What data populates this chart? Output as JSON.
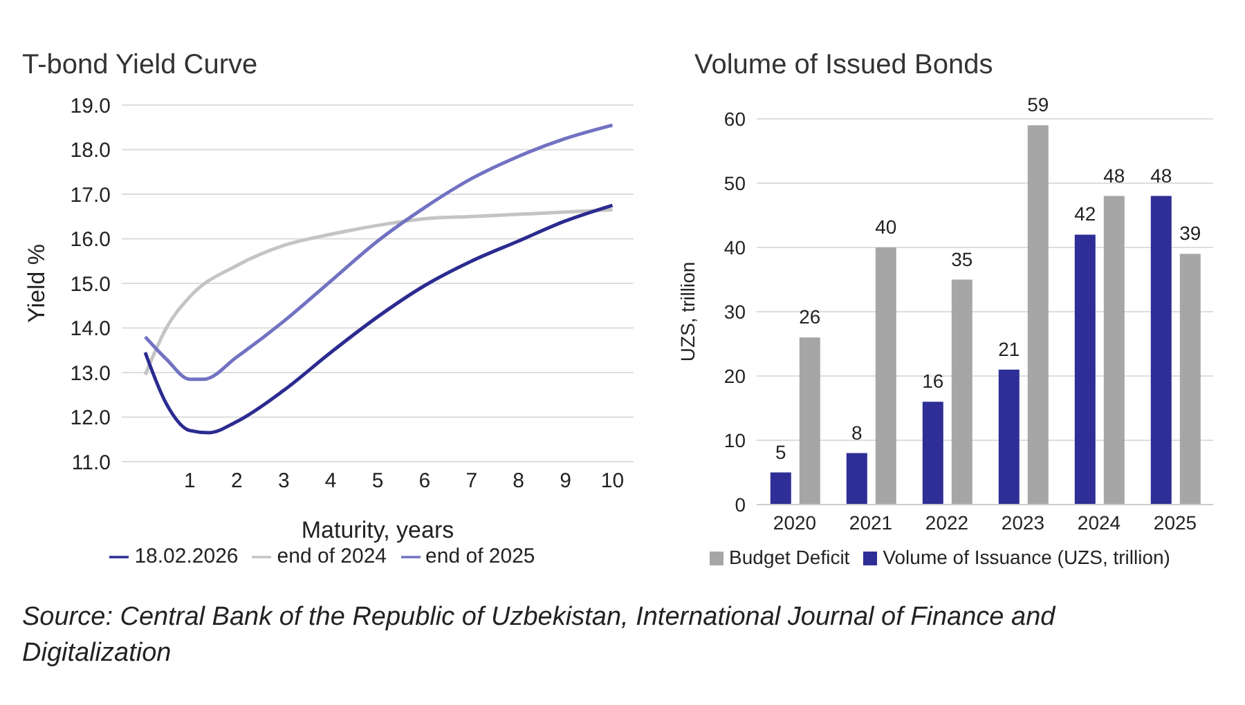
{
  "chart_data": [
    {
      "type": "line",
      "title": "T-bond Yield Curve",
      "xlabel": "Maturity, years",
      "ylabel": "Yield %",
      "xlim": [
        -0.45,
        10.45
      ],
      "xticks": [
        1,
        2,
        3,
        4,
        5,
        6,
        7,
        8,
        9,
        10
      ],
      "ylim": [
        11,
        19
      ],
      "yticks": [
        {
          "value": 11,
          "label": "11.0"
        },
        {
          "value": 12,
          "label": "12.0"
        },
        {
          "value": 13,
          "label": "13.0"
        },
        {
          "value": 14,
          "label": "14.0"
        },
        {
          "value": 15,
          "label": "15.0"
        },
        {
          "value": 16,
          "label": "16.0"
        },
        {
          "value": 17,
          "label": "17.0"
        },
        {
          "value": 18,
          "label": "18.0"
        },
        {
          "value": 19,
          "label": "19.0"
        }
      ],
      "grid": "y",
      "legend": "bottom",
      "series": [
        {
          "name": "end of 2024",
          "color": "#c4c4c4",
          "x": [
            0.05,
            0.5,
            1,
            2,
            3,
            4,
            5,
            6,
            7,
            8,
            9,
            10
          ],
          "values": [
            12.95,
            14.0,
            14.7,
            15.4,
            15.85,
            16.1,
            16.3,
            16.45,
            16.5,
            16.55,
            16.6,
            16.65
          ]
        },
        {
          "name": "end of 2025",
          "color": "#7272c2",
          "x": [
            0.05,
            0.5,
            1,
            1.3,
            2,
            3,
            4,
            5,
            6,
            7,
            8,
            9,
            10
          ],
          "values": [
            13.8,
            13.3,
            12.85,
            12.85,
            13.35,
            14.15,
            15.05,
            15.95,
            16.7,
            17.35,
            17.85,
            18.25,
            18.55
          ]
        },
        {
          "name": "18.02.2026",
          "color": "#2b2b90",
          "x": [
            0.05,
            0.5,
            1,
            1.4,
            2,
            3,
            4,
            5,
            6,
            7,
            8,
            9,
            10
          ],
          "values": [
            13.45,
            12.3,
            11.7,
            11.65,
            11.9,
            12.6,
            13.45,
            14.25,
            14.95,
            15.5,
            15.95,
            16.4,
            16.75
          ]
        }
      ],
      "annotations": [
        "Source: Central Bank of the Republic of Uzbekistan, International Journal of Finance and Digitalization"
      ]
    },
    {
      "type": "bar",
      "title": "Volume of Issued Bonds",
      "ylabel": "UZS, trillion",
      "categories": [
        "2020",
        "2021",
        "2022",
        "2023",
        "2024",
        "2025"
      ],
      "ylim": [
        0,
        60
      ],
      "yticks": [
        0,
        10,
        20,
        30,
        40,
        50,
        60
      ],
      "grid": "y",
      "legend": "bottom",
      "data_labels": true,
      "series": [
        {
          "name": "Volume of Issuance (UZS, trillion)",
          "color": "#2e2e96",
          "values": [
            5,
            8,
            16,
            21,
            42,
            48
          ]
        },
        {
          "name": "Budget Deficit",
          "color": "#a6a6a6",
          "values": [
            26,
            40,
            35,
            59,
            48,
            39
          ]
        }
      ]
    }
  ]
}
